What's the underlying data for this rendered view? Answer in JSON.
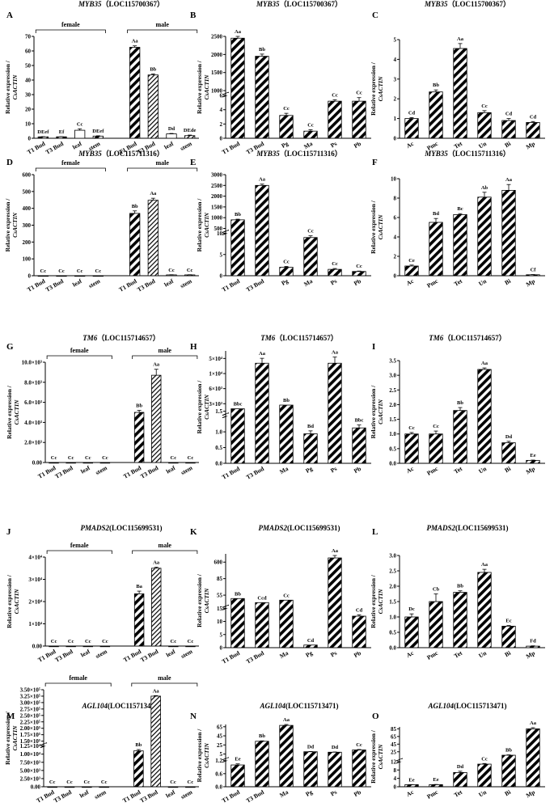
{
  "chart_data": [
    {
      "panel": "A",
      "type": "bar",
      "title_gene": "MYB35",
      "title_locus": "（LOC115700367）",
      "ylabel": "Relative expression / CsACTIN",
      "yticks": [
        "0",
        "10",
        "20",
        "30",
        "40",
        "50",
        "60",
        "70"
      ],
      "ylim": [
        0,
        70
      ],
      "groups": [
        {
          "name": "female",
          "start": 0,
          "end": 3
        },
        {
          "name": "male",
          "start": 4,
          "end": 7
        }
      ],
      "categories": [
        "T1 Bud",
        "T3 Bud",
        "leaf",
        "stem",
        "T1 Bud",
        "T3 Bud",
        "leaf",
        "stem"
      ],
      "values": [
        1.0,
        1.0,
        5.5,
        1.5,
        62.5,
        43.5,
        3.0,
        1.8
      ],
      "errors": [
        0.1,
        0.1,
        1.0,
        0.2,
        1.0,
        0.7,
        0.3,
        0.4
      ],
      "labels": [
        "DEef",
        "Ef",
        "Cc",
        "DEef",
        "Aa",
        "Bb",
        "Dd",
        "DEde"
      ],
      "patterns": [
        "d",
        "d",
        "w",
        "d",
        "d",
        "h",
        "w",
        "h"
      ]
    },
    {
      "panel": "B",
      "type": "bar",
      "title_gene": "MYB35",
      "title_locus": "（LOC115700367）",
      "ylabel": "Relative expression / CsACTIN",
      "broken": {
        "lowTicks": [
          "0",
          "2",
          "4",
          "6"
        ],
        "lowMax": 6,
        "highTicks": [
          "1000",
          "1500",
          "2000",
          "2500"
        ],
        "highMin": 1000,
        "highMax": 2500
      },
      "categories": [
        "T1 Bud",
        "T3 Bud",
        "Pg",
        "Ma",
        "Ps",
        "Pb"
      ],
      "values": [
        2450,
        1950,
        3.2,
        1.0,
        5.2,
        5.2
      ],
      "errors": [
        150,
        60,
        0.3,
        0.2,
        0.2,
        0.5
      ],
      "labels": [
        "Aa",
        "Bb",
        "Cc",
        "Cc",
        "Cc",
        "Cc"
      ]
    },
    {
      "panel": "C",
      "type": "bar",
      "title_gene": "MYB35",
      "title_locus": "（LOC115700367）",
      "ylabel": "Relative expression / CsACTIN",
      "yticks": [
        "0",
        "1",
        "2",
        "3",
        "4",
        "5"
      ],
      "ylim": [
        0,
        5
      ],
      "categories": [
        "Ac",
        "Pmc",
        "Tet",
        "Un",
        "Bi",
        "Mp"
      ],
      "values": [
        1.0,
        2.35,
        4.55,
        1.3,
        0.9,
        0.8
      ],
      "errors": [
        0.05,
        0.1,
        0.25,
        0.1,
        0.1,
        0.05
      ],
      "labels": [
        "Cd",
        "Bb",
        "Aa",
        "Cc",
        "Cd",
        "Cd"
      ]
    },
    {
      "panel": "D",
      "type": "bar",
      "title_gene": "MYB35",
      "title_locus": "（LOC115711316）",
      "ylabel": "Relative expression / CsACTIN",
      "yticks": [
        "0",
        "100",
        "200",
        "300",
        "400",
        "500",
        "600"
      ],
      "ylim": [
        0,
        600
      ],
      "groups": [
        {
          "name": "female",
          "start": 0,
          "end": 3
        },
        {
          "name": "male",
          "start": 4,
          "end": 7
        }
      ],
      "categories": [
        "T1 Bud",
        "T3 Bud",
        "leaf",
        "stem",
        "T1 Bud",
        "T3 Bud",
        "leaf",
        "stem"
      ],
      "values": [
        0.5,
        0.5,
        0.5,
        0.5,
        370,
        448,
        5,
        5
      ],
      "errors": [
        0,
        0,
        0,
        0,
        15,
        12,
        1,
        1
      ],
      "labels": [
        "Cc",
        "Cc",
        "Cc",
        "Cc",
        "Bb",
        "Aa",
        "Cc",
        "Cc"
      ],
      "patterns": [
        "d",
        "d",
        "w",
        "d",
        "d",
        "h",
        "w",
        "h"
      ]
    },
    {
      "panel": "E",
      "type": "bar",
      "title_gene": "MYB35",
      "title_locus": "（LOC115711316）",
      "ylabel": "Relative expression / CsACTIN",
      "broken": {
        "lowTicks": [
          "0",
          "5",
          "10"
        ],
        "lowMax": 10,
        "highTicks": [
          "500",
          "1000",
          "1500",
          "2000",
          "2500",
          "3000"
        ],
        "highMin": 500,
        "highMax": 3000
      },
      "categories": [
        "T1 Bud",
        "T3 Bud",
        "Pg",
        "Ma",
        "Ps",
        "Pb"
      ],
      "values": [
        900,
        2500,
        2.0,
        9.0,
        1.5,
        1.0
      ],
      "errors": [
        30,
        60,
        0.2,
        0.4,
        0.2,
        0.1
      ],
      "labels": [
        "Bb",
        "Aa",
        "Cc",
        "Cc",
        "Cc",
        "Cc"
      ]
    },
    {
      "panel": "F",
      "type": "bar",
      "title_gene": "MYB35",
      "title_locus": "（LOC115711316）",
      "ylabel": "Relative expression / CsACTIN",
      "yticks": [
        "0",
        "2",
        "4",
        "6",
        "8",
        "10"
      ],
      "ylim": [
        0,
        10
      ],
      "categories": [
        "Ac",
        "Pmc",
        "Tet",
        "Un",
        "Bi",
        "Mp"
      ],
      "values": [
        1.0,
        5.5,
        6.3,
        8.1,
        8.8,
        0.1
      ],
      "errors": [
        0.1,
        0.4,
        0.1,
        0.5,
        0.6,
        0.02
      ],
      "labels": [
        "Ce",
        "Bd",
        "Bc",
        "Ab",
        "Aa",
        "Cf"
      ]
    },
    {
      "panel": "G",
      "type": "bar",
      "title_gene": "TM6",
      "title_locus": "（LOC115714657）",
      "ylabel": "Relative expression / CsACTIN",
      "yticks": [
        "0.00",
        "2.0×10³",
        "4.0×10³",
        "6.0×10³",
        "8.0×10³",
        "10.0×10³"
      ],
      "ylim": [
        0,
        10000
      ],
      "groups": [
        {
          "name": "female",
          "start": 0,
          "end": 3
        },
        {
          "name": "male",
          "start": 4,
          "end": 7
        }
      ],
      "categories": [
        "T1 Bud",
        "T3 Bud",
        "leaf",
        "stem",
        "T1 Bud",
        "T3 Bud",
        "leaf",
        "stem"
      ],
      "values": [
        1,
        1,
        1,
        1,
        5000,
        8700,
        1,
        1
      ],
      "errors": [
        0,
        0,
        0,
        0,
        200,
        600,
        0,
        0
      ],
      "labels": [
        "Cc",
        "Cc",
        "Cc",
        "Cc",
        "Bb",
        "Aa",
        "Cc",
        "Cc"
      ],
      "patterns": [
        "d",
        "d",
        "w",
        "d",
        "d",
        "h",
        "w",
        "h"
      ]
    },
    {
      "panel": "H",
      "type": "bar",
      "title_gene": "TM6",
      "title_locus": "（LOC115714657）",
      "ylabel": "Relative expression / CsACTIN",
      "broken": {
        "lowTicks": [
          "0.0",
          "0.5",
          "1.0",
          "1.5"
        ],
        "lowMax": 1.6,
        "highTicks": [
          "3×10³",
          "6×10³",
          "1×10⁴",
          "5×10⁴"
        ],
        "highMin": 1000,
        "highMax": 50000,
        "highMode": "ticks"
      },
      "categories": [
        "T1 Bud",
        "T3 Bud",
        "Ma",
        "Pg",
        "Ps",
        "Pb"
      ],
      "values": [
        3000,
        40000,
        6000,
        1.0,
        40000,
        1.2
      ],
      "errors": [
        0,
        4000,
        0,
        0.1,
        5000,
        0.1
      ],
      "labels": [
        "Bbc",
        "Aa",
        "Bb",
        "Bd",
        "Aa",
        "Bbc"
      ]
    },
    {
      "panel": "I",
      "type": "bar",
      "title_gene": "TM6",
      "title_locus": "（LOC115714657）",
      "ylabel": "Relative expression / CsACTIN",
      "yticks": [
        "0.0",
        "0.5",
        "1.0",
        "1.5",
        "2.0",
        "2.5",
        "3.0",
        "3.5"
      ],
      "ylim": [
        0,
        3.5
      ],
      "categories": [
        "Ac",
        "Pmc",
        "Tet",
        "Un",
        "Bi",
        "Mp"
      ],
      "values": [
        1.0,
        1.0,
        1.8,
        3.2,
        0.7,
        0.1
      ],
      "errors": [
        0.05,
        0.1,
        0.1,
        0.05,
        0.05,
        0.01
      ],
      "labels": [
        "Cc",
        "Cc",
        "Bb",
        "Aa",
        "Dd",
        "Ee"
      ]
    },
    {
      "panel": "J",
      "type": "bar",
      "title_gene": "PMADS2",
      "title_locus": "(LOC115699531)",
      "ylabel": "Relative expression / CsACTIN",
      "yticks": [
        "0.00",
        "1×10⁴",
        "2×10⁴",
        "3×10⁴",
        "4×10⁴"
      ],
      "ylim": [
        0,
        40000
      ],
      "groups": [
        {
          "name": "female",
          "start": 0,
          "end": 3
        },
        {
          "name": "male",
          "start": 4,
          "end": 7
        }
      ],
      "categories": [
        "T1 Bud",
        "T3 Bud",
        "leaf",
        "stem",
        "T1 Bud",
        "T3 Bud",
        "leaf",
        "stem"
      ],
      "values": [
        1,
        1,
        1,
        1,
        23500,
        35000,
        1,
        1
      ],
      "errors": [
        0,
        0,
        0,
        0,
        1200,
        500,
        0,
        0
      ],
      "labels": [
        "Cc",
        "Cc",
        "Cc",
        "Cc",
        "Ba",
        "Aa",
        "Cc",
        "Cc"
      ],
      "patterns": [
        "d",
        "d",
        "w",
        "d",
        "d",
        "h",
        "w",
        "h"
      ]
    },
    {
      "panel": "K",
      "type": "bar",
      "title_gene": "PMADS2",
      "title_locus": "(LOC115699531)",
      "ylabel": "Relative expression / CsACTIN",
      "broken": {
        "lowTicks": [
          "0",
          "5",
          "10",
          "15"
        ],
        "lowMax": 15,
        "highTicks": [
          "55",
          "85",
          "600"
        ],
        "highMin": 40,
        "highMax": 650,
        "highMode": "ticks"
      },
      "categories": [
        "T1 Bud",
        "T3 Bud",
        "Ma",
        "Pg",
        "Ps",
        "Pb"
      ],
      "values": [
        100,
        50,
        80,
        1.0,
        600,
        12
      ],
      "errors": [
        0,
        0,
        0,
        0,
        30,
        0.5
      ],
      "labels": [
        "Bb",
        "Ccd",
        "Cc",
        "Cd",
        "Aa",
        "Cd"
      ]
    },
    {
      "panel": "L",
      "type": "bar",
      "title_gene": "PMADS2",
      "title_locus": "(LOC115699531)",
      "ylabel": "Relative expression / CsACTIN",
      "yticks": [
        "0.0",
        "0.5",
        "1.0",
        "1.5",
        "2.0",
        "2.5",
        "3.0"
      ],
      "ylim": [
        0,
        3.0
      ],
      "categories": [
        "Ac",
        "Pmc",
        "Tet",
        "Un",
        "Bi",
        "Mp"
      ],
      "values": [
        1.0,
        1.5,
        1.8,
        2.45,
        0.7,
        0.05
      ],
      "errors": [
        0.1,
        0.25,
        0.05,
        0.1,
        0.02,
        0.01
      ],
      "labels": [
        "Dc",
        "Cb",
        "Bb",
        "Aa",
        "Ec",
        "Fd"
      ]
    },
    {
      "panel": "M",
      "type": "bar",
      "title_gene": "AGL104",
      "title_locus": "(LOC115713471)",
      "ylabel": "Relative expression / CsACTIN",
      "broken": {
        "lowTicks": [
          "0.00",
          "2.50×10³",
          "5.00×10³",
          "7.50×10³",
          "1.00×10⁴",
          "1.25×10⁴"
        ],
        "lowMax": 12500,
        "highTicks": [
          "1.50×10⁵",
          "1.75×10⁵",
          "2.00×10⁵",
          "2.25×10⁵",
          "2.50×10⁵",
          "2.75×10⁵",
          "3.00×10⁵",
          "3.25×10⁵",
          "3.50×10⁵"
        ],
        "highMin": 150000,
        "highMax": 350000
      },
      "groups": [
        {
          "name": "female",
          "start": 0,
          "end": 3
        },
        {
          "name": "male",
          "start": 4,
          "end": 7
        }
      ],
      "categories": [
        "T1 Bud",
        "T3 Bud",
        "leaf",
        "stem",
        "T1 Bud",
        "T3 Bud",
        "leaf",
        "stem"
      ],
      "values": [
        1,
        1,
        1,
        1,
        11000,
        325000,
        1,
        1
      ],
      "errors": [
        0,
        0,
        0,
        0,
        400,
        2000,
        0,
        0
      ],
      "labels": [
        "Cc",
        "Cc",
        "Cc",
        "Cc",
        "Bb",
        "Aa",
        "Cc",
        "Cc"
      ],
      "patterns": [
        "d",
        "d",
        "w",
        "d",
        "d",
        "h",
        "w",
        "h"
      ]
    },
    {
      "panel": "N",
      "type": "bar",
      "title_gene": "AGL104",
      "title_locus": "(LOC115713471)",
      "ylabel": "Relative expression / CsACTIN",
      "broken": {
        "lowTicks": [
          "0.0",
          "0.6",
          "1.2"
        ],
        "lowMax": 1.2,
        "highTicks": [
          "5",
          "25",
          "45",
          "65"
        ],
        "highMin": 1.2,
        "highMax": 70
      },
      "categories": [
        "T1 Bud",
        "T3 Bud",
        "Ma",
        "Pg",
        "Ps",
        "Pb"
      ],
      "values": [
        1.0,
        33,
        68,
        10,
        9,
        14
      ],
      "errors": [
        0.05,
        1,
        2,
        0.5,
        0.5,
        1
      ],
      "labels": [
        "Ee",
        "Bb",
        "Aa",
        "Dd",
        "Dd",
        "Cc"
      ]
    },
    {
      "panel": "O",
      "type": "bar",
      "title_gene": "AGL104",
      "title_locus": "(LOC115713471)",
      "ylabel": "Relative expression / CsACTIN",
      "broken": {
        "lowTicks": [
          "0",
          "4",
          "8",
          "12"
        ],
        "lowMax": 12,
        "highTicks": [
          "25",
          "45",
          "65",
          "85"
        ],
        "highMin": 12,
        "highMax": 90
      },
      "categories": [
        "Ac",
        "Pmc",
        "Tet",
        "Un",
        "Bi",
        "Mp"
      ],
      "values": [
        1.0,
        1.0,
        6.8,
        10.8,
        16,
        85
      ],
      "errors": [
        0.05,
        0.1,
        0.6,
        0.3,
        1,
        3
      ],
      "labels": [
        "Ee",
        "Ee",
        "Dd",
        "Cc",
        "Bb",
        "Aa"
      ]
    }
  ]
}
